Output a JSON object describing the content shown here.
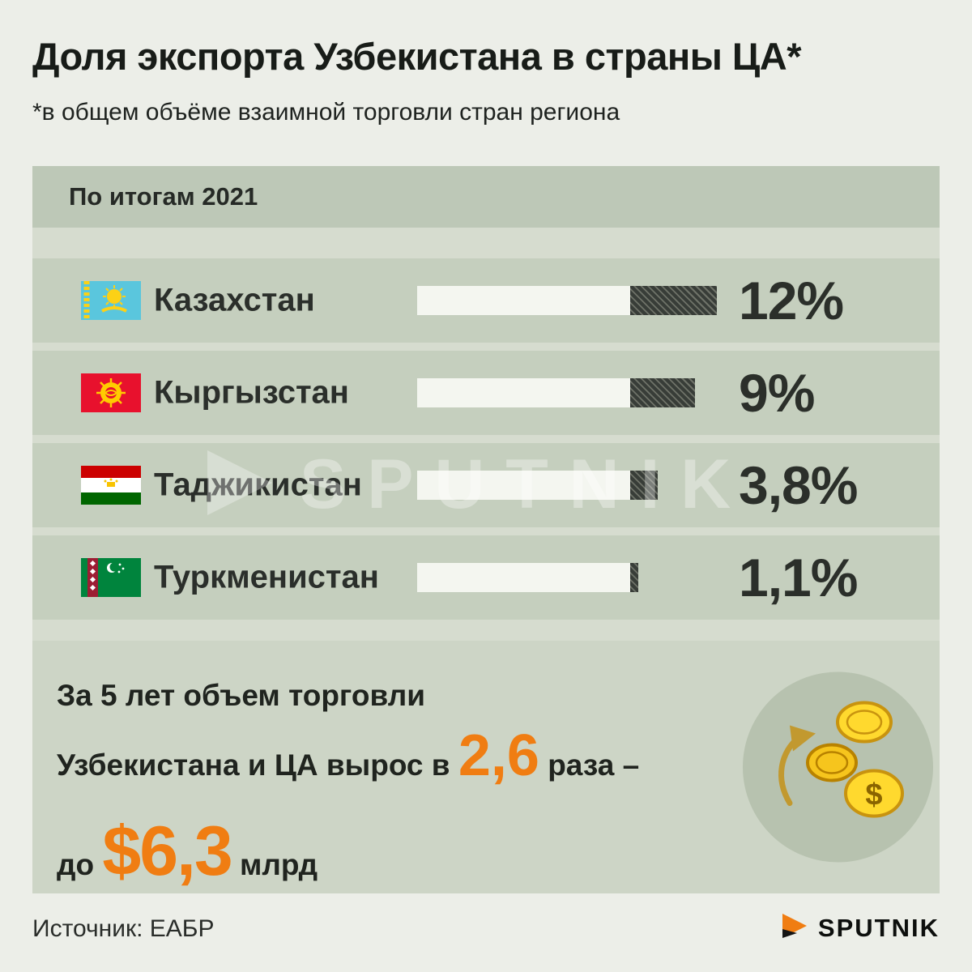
{
  "page": {
    "title": "Доля экспорта Узбекистана в страны ЦА*",
    "subtitle": "*в общем объёме взаимной торговли стран региона",
    "source": "Источник: ЕАБР",
    "brand": "SPUTNIK",
    "watermark": "SPUTNIK"
  },
  "chart_data": {
    "type": "bar",
    "orientation": "horizontal",
    "title": "По итогам 2021",
    "categories": [
      "Казахстан",
      "Кыргызстан",
      "Таджикистан",
      "Туркменистан"
    ],
    "values": [
      12,
      9,
      3.8,
      1.1
    ],
    "value_labels": [
      "12%",
      "9%",
      "3,8%",
      "1,1%"
    ],
    "unit": "%",
    "legend": "none",
    "grid": false
  },
  "highlight": {
    "line1": "За 5 лет объем торговли",
    "line2_prefix": "Узбекистана и ЦА вырос в",
    "line2_value": "2,6",
    "line2_suffix": "раза –",
    "line3_prefix": "до",
    "line3_value": "$6,3",
    "line3_suffix": "млрд"
  },
  "icons": {
    "flags": [
      "flag-kazakhstan",
      "flag-kyrgyzstan",
      "flag-tajikistan",
      "flag-turkmenistan"
    ],
    "illustration": "coins-growth-icon",
    "brand_icon": "sputnik-triangle-icon",
    "watermark_icon": "sputnik-triangle-watermark"
  },
  "colors": {
    "accent_orange": "#f07d12",
    "background": "#eceee8",
    "panel_header": "#bdc8b7",
    "panel_row": "#c5cfbe",
    "panel_gap": "#d6dccf",
    "info_band": "#cdd5c6",
    "bar_track": "#f4f6f0",
    "bar_fill": "#383d38",
    "text_dark": "#20241f"
  }
}
